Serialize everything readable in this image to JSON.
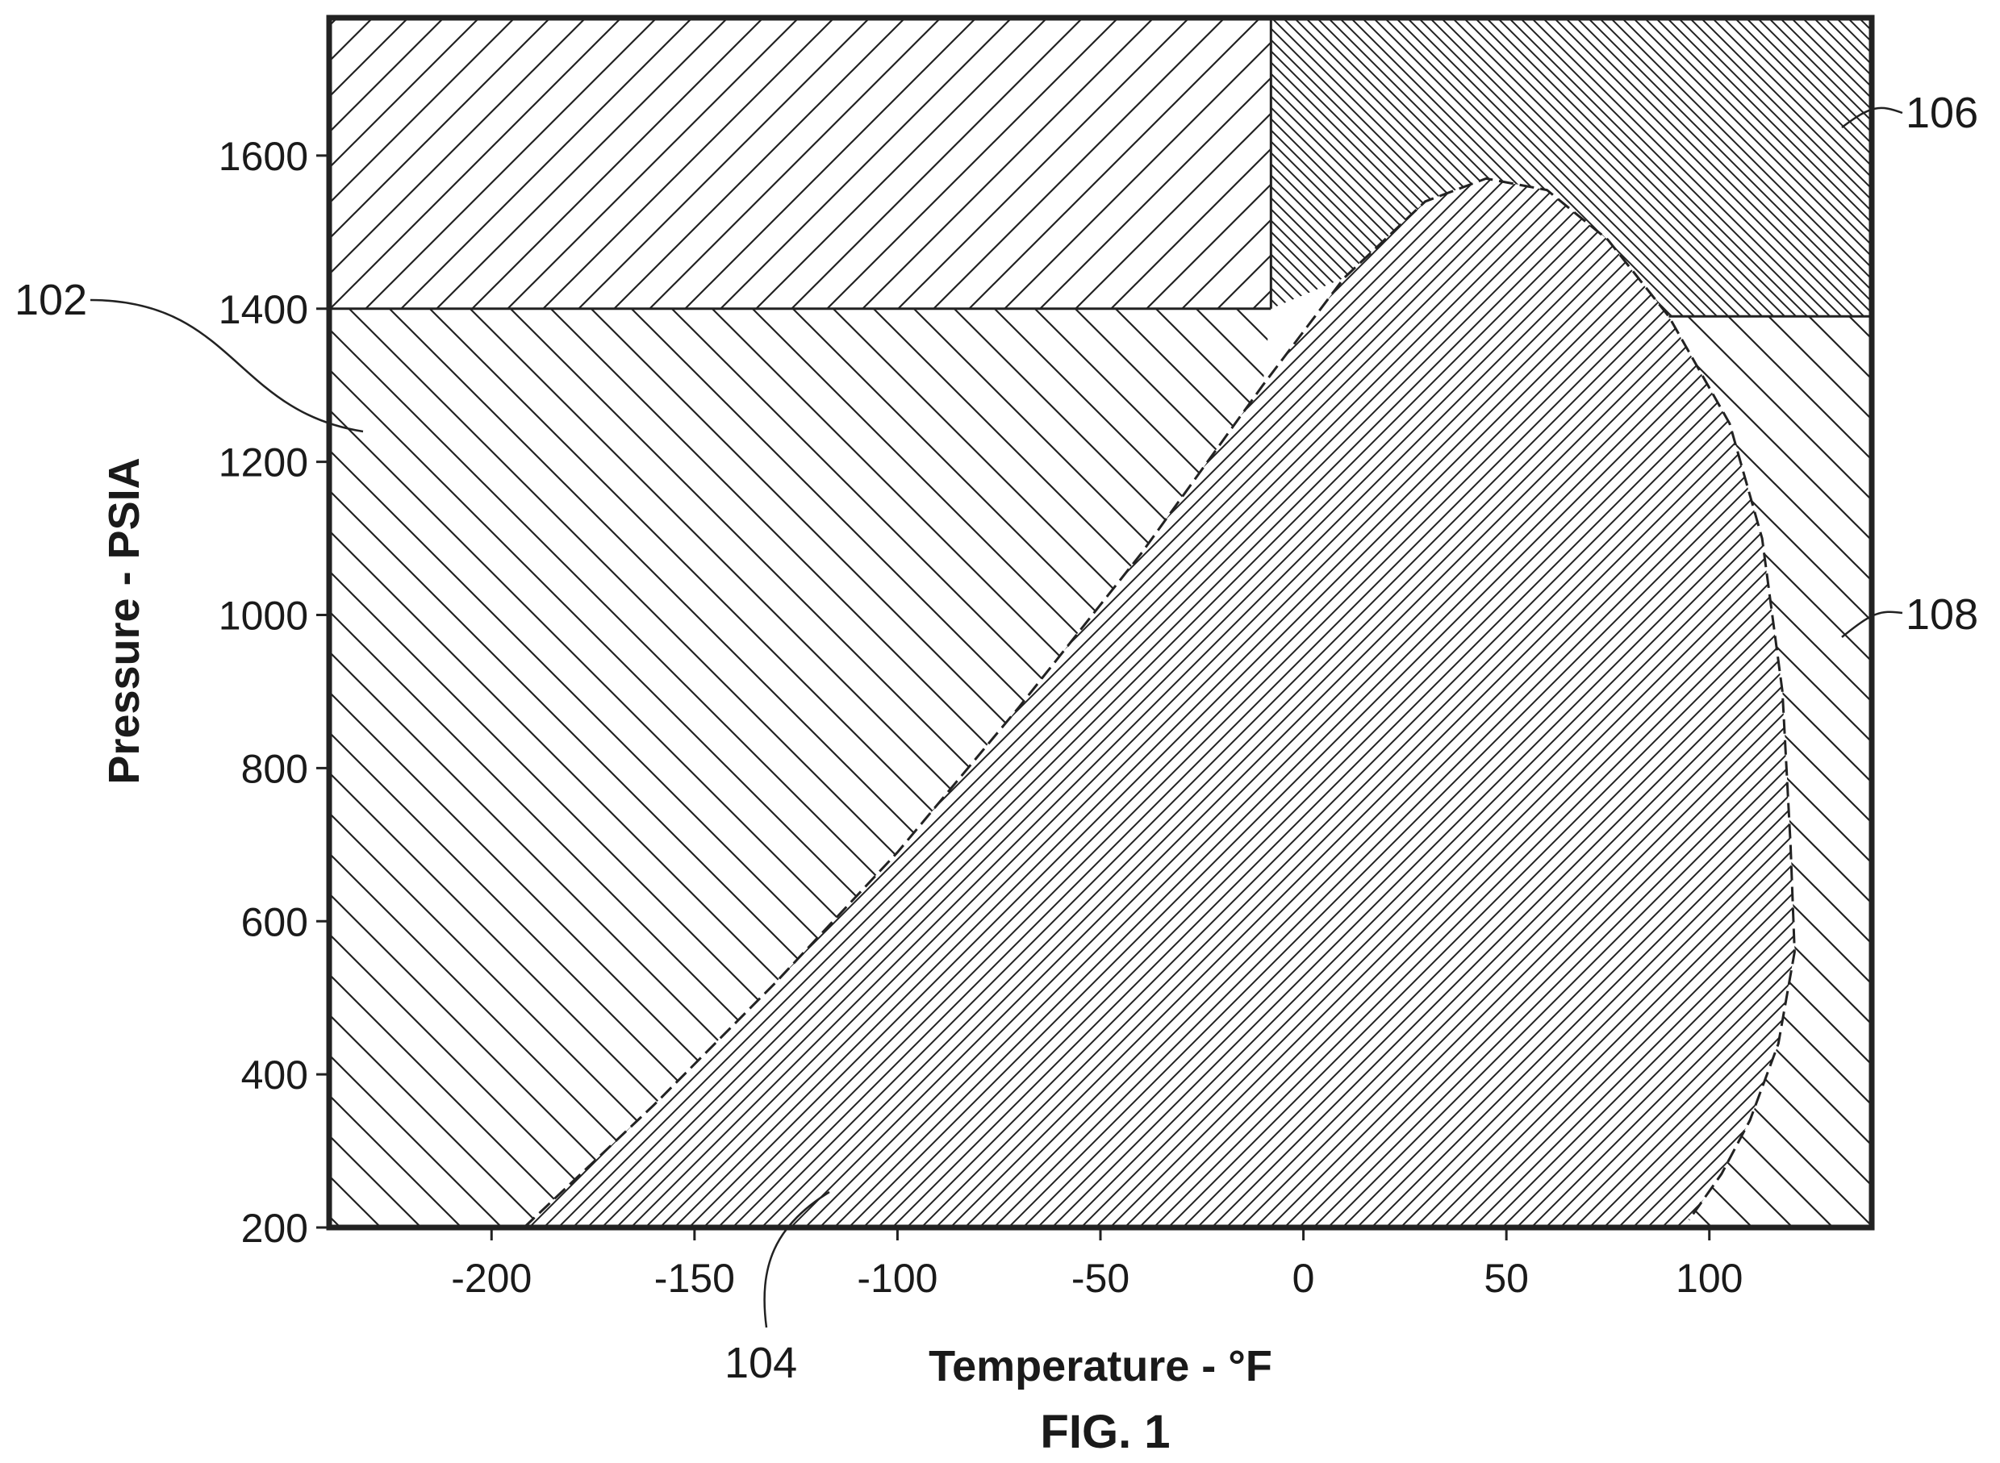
{
  "figure": {
    "caption": "FIG. 1"
  },
  "chart_data": {
    "type": "area",
    "xlabel": "Temperature - °F",
    "ylabel": "Pressure - PSIA",
    "xlim": [
      -240,
      140
    ],
    "ylim": [
      200,
      1780
    ],
    "xticks": [
      -200,
      -150,
      -100,
      -50,
      0,
      50,
      100
    ],
    "yticks": [
      200,
      400,
      600,
      800,
      1000,
      1200,
      1400,
      1600
    ],
    "xtick_labels": [
      "-200",
      "-150",
      "-100",
      "-50",
      "0",
      "50",
      "100"
    ],
    "ytick_labels": [
      "200",
      "400",
      "600",
      "800",
      "1000",
      "1200",
      "1400",
      "1600"
    ],
    "grid": false,
    "boundaries": {
      "dense_phase_pressure": 1400,
      "dense_phase_left_temperature": -8,
      "right_region_pressure": 1390,
      "right_region_left_temperature": 90,
      "phase_envelope": [
        [
          -192,
          200
        ],
        [
          -160,
          360
        ],
        [
          -130,
          520
        ],
        [
          -100,
          690
        ],
        [
          -70,
          880
        ],
        [
          -40,
          1080
        ],
        [
          -10,
          1300
        ],
        [
          10,
          1440
        ],
        [
          30,
          1540
        ],
        [
          45,
          1570
        ],
        [
          60,
          1555
        ],
        [
          75,
          1490
        ],
        [
          90,
          1390
        ],
        [
          105,
          1250
        ],
        [
          113,
          1100
        ],
        [
          118,
          900
        ],
        [
          120,
          700
        ],
        [
          121,
          560
        ],
        [
          117,
          440
        ],
        [
          110,
          340
        ],
        [
          103,
          270
        ],
        [
          95,
          210
        ]
      ]
    },
    "regions": [
      {
        "ref": "102",
        "name": "",
        "pattern": "hatch-left"
      },
      {
        "ref": "104",
        "name": "",
        "pattern": "hatch-fine-right"
      },
      {
        "ref": "106",
        "name": "",
        "pattern": "hatch-crossed"
      },
      {
        "ref": "108",
        "name": "",
        "pattern": "hatch-left-wide"
      }
    ],
    "callouts": [
      "102",
      "104",
      "106",
      "108"
    ]
  }
}
